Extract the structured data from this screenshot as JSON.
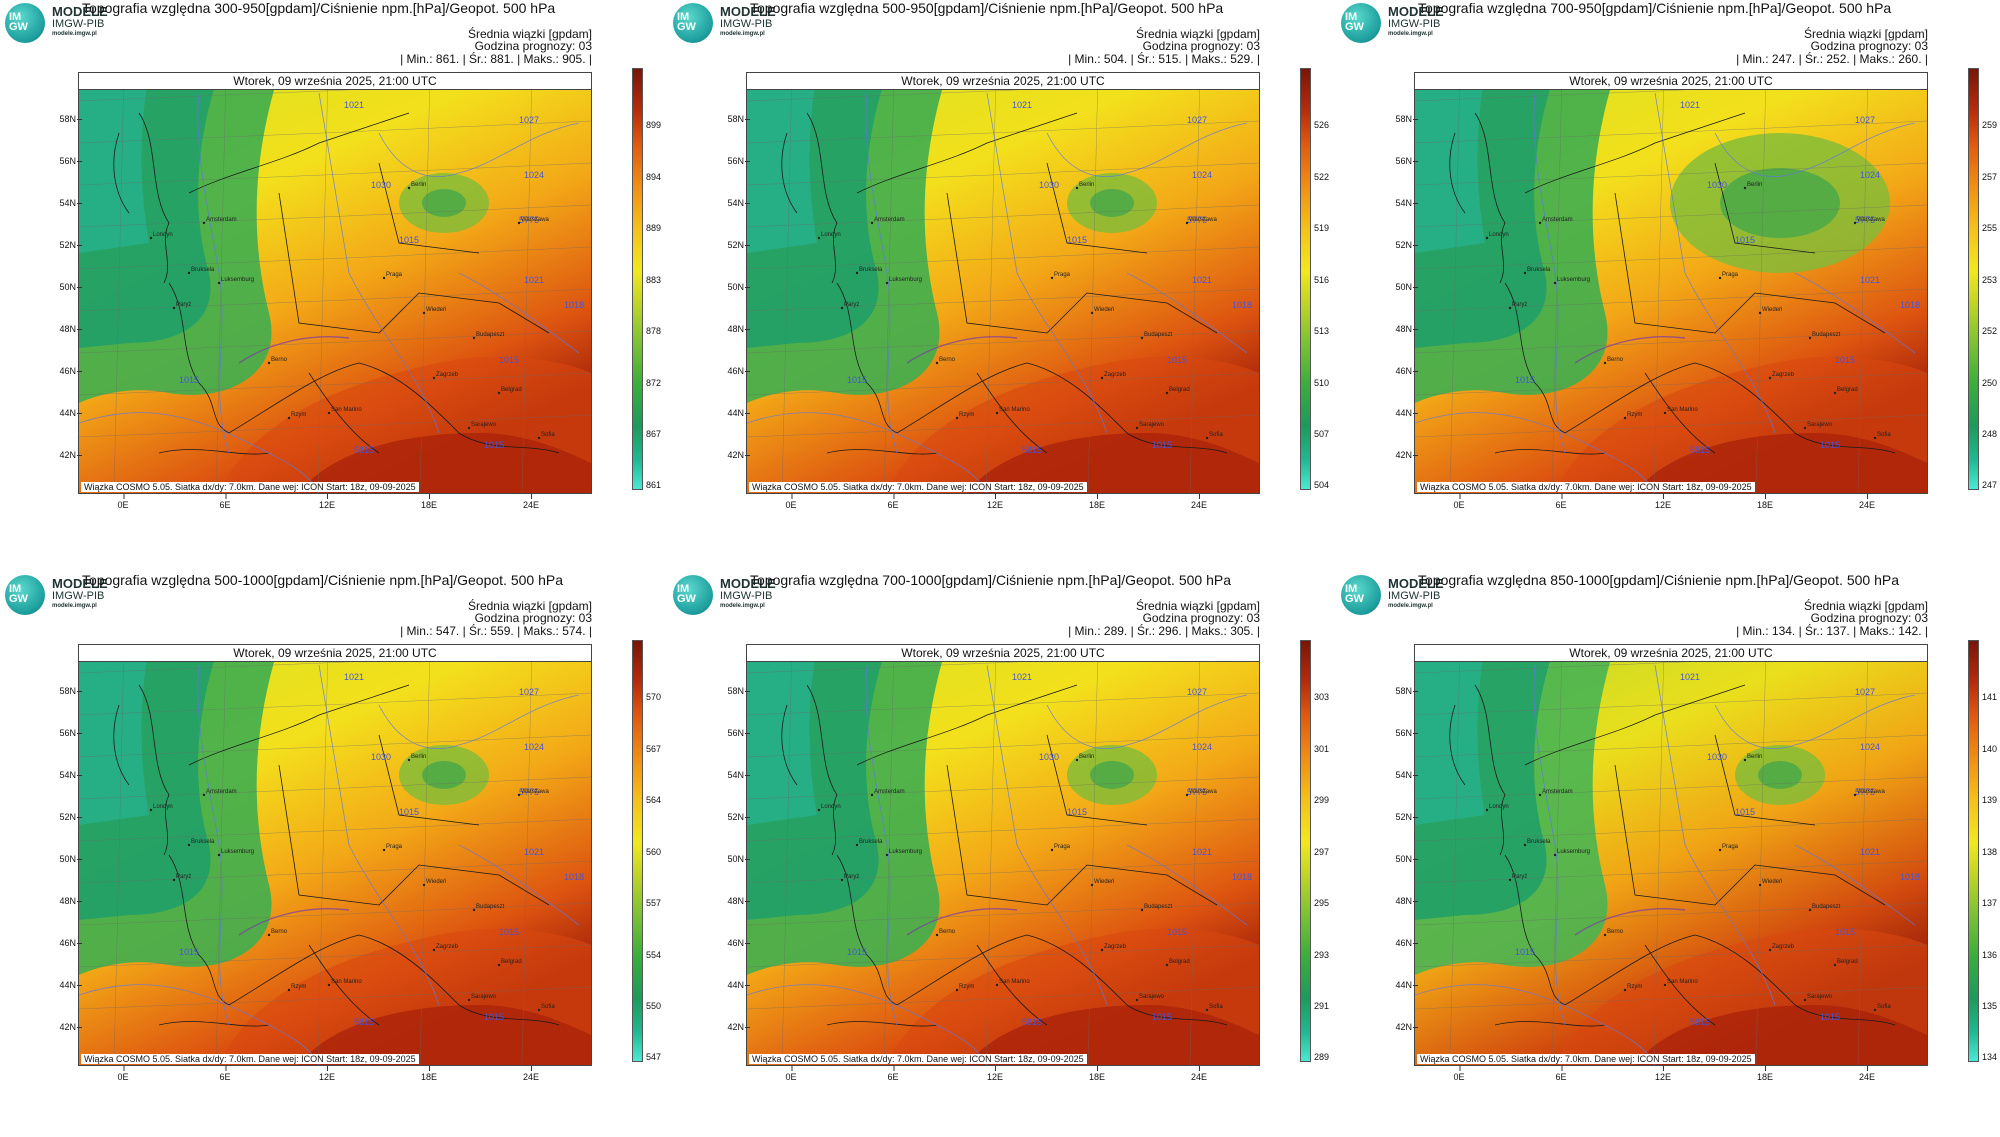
{
  "logo": {
    "text_top": "IM",
    "text_bottom": "GW",
    "brand": "MODELE",
    "org": "IMGW-PIB",
    "url": "modele.imgw.pl"
  },
  "common": {
    "mean_label": "Średnia wiązki [gpdam]",
    "forecast_label": "Godzina prognozy: 03",
    "date": "Wtorek, 09 września 2025, 21:00 UTC",
    "footer": "Wiązka COSMO 5.05. Siatka dx/dy: 7.0km. Dane wej: ICON Start: 18z, 09-09-2025",
    "lat_labels": [
      "58N",
      "56N",
      "54N",
      "52N",
      "50N",
      "48N",
      "46N",
      "44N",
      "42N"
    ],
    "lon_labels": [
      "0E",
      "6E",
      "12E",
      "18E",
      "24E"
    ],
    "contour_labels": [
      "1021",
      "1027",
      "1024",
      "1030",
      "1015",
      "1018",
      "1021",
      "1015",
      "1015",
      "5815",
      "1015",
      "5775"
    ],
    "cities": [
      "Londyn",
      "Paryż",
      "Bruksela",
      "Amsterdam",
      "Luksemburg",
      "Berlin",
      "Praga",
      "Wiedeń",
      "Budapeszt",
      "Zagrzeb",
      "Belgrad",
      "Berno",
      "Rzym",
      "Sarajewo",
      "San Marino",
      "Sofia",
      "Warszawa"
    ]
  },
  "panels": [
    {
      "title": "Topografia względna 300-950[gpdam]/Ciśnienie npm.[hPa]/Geopot. 500 hPa",
      "stats": "| Min.:   861. | Śr.:   881. | Maks.:   905. |",
      "cbar_ticks": [
        "899",
        "894",
        "889",
        "883",
        "878",
        "872",
        "867",
        "861"
      ]
    },
    {
      "title": "Topografia względna 500-950[gpdam]/Ciśnienie npm.[hPa]/Geopot. 500 hPa",
      "stats": "| Min.:   504. | Śr.:   515. | Maks.:   529. |",
      "cbar_ticks": [
        "526",
        "522",
        "519",
        "516",
        "513",
        "510",
        "507",
        "504"
      ]
    },
    {
      "title": "Topografia względna 700-950[gpdam]/Ciśnienie npm.[hPa]/Geopot. 500 hPa",
      "stats": "| Min.:   247. | Śr.:   252. | Maks.:   260. |",
      "cbar_ticks": [
        "259",
        "257",
        "255",
        "253",
        "252",
        "250",
        "248",
        "247"
      ]
    },
    {
      "title": "Topografia względna 500-1000[gpdam]/Ciśnienie npm.[hPa]/Geopot. 500 hPa",
      "stats": "| Min.:   547. | Śr.:   559. | Maks.:   574. |",
      "cbar_ticks": [
        "570",
        "567",
        "564",
        "560",
        "557",
        "554",
        "550",
        "547"
      ]
    },
    {
      "title": "Topografia względna 700-1000[gpdam]/Ciśnienie npm.[hPa]/Geopot. 500 hPa",
      "stats": "| Min.:   289. | Śr.:   296. | Maks.:   305. |",
      "cbar_ticks": [
        "303",
        "301",
        "299",
        "297",
        "295",
        "293",
        "291",
        "289"
      ]
    },
    {
      "title": "Topografia względna 850-1000[gpdam]/Ciśnienie npm.[hPa]/Geopot. 500 hPa",
      "stats": "| Min.:   134. | Śr.:   137. | Maks.:   142. |",
      "cbar_ticks": [
        "141",
        "140",
        "139",
        "138",
        "137",
        "136",
        "135",
        "134"
      ]
    }
  ]
}
